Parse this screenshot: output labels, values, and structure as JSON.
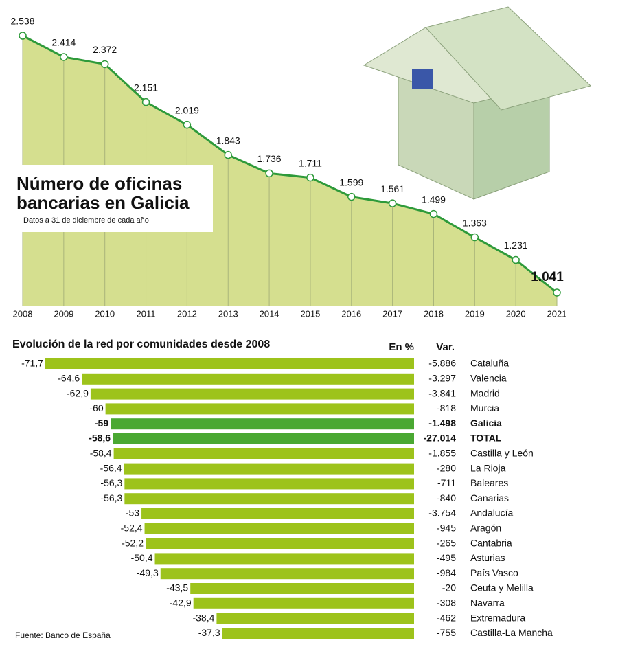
{
  "chart_data": [
    {
      "type": "area",
      "title": [
        "Número de oficinas",
        "bancarias en Galicia"
      ],
      "subtitle": "Datos a 31 de diciembre de cada año",
      "categories": [
        "2008",
        "2009",
        "2010",
        "2011",
        "2012",
        "2013",
        "2014",
        "2015",
        "2016",
        "2017",
        "2018",
        "2019",
        "2020",
        "2021"
      ],
      "values": [
        2538,
        2414,
        2372,
        2151,
        2019,
        1843,
        1736,
        1711,
        1599,
        1561,
        1499,
        1363,
        1231,
        1041
      ],
      "value_labels": [
        "2.538",
        "2.414",
        "2.372",
        "2.151",
        "2.019",
        "1.843",
        "1.736",
        "1.711",
        "1.599",
        "1.561",
        "1.499",
        "1.363",
        "1.231",
        "1.041"
      ],
      "color": "#2e9a3a",
      "fill": "#d5df8f"
    },
    {
      "type": "hbar",
      "title": "Evolución de la red por comunidades desde 2008",
      "categories": [
        "Cataluña",
        "Valencia",
        "Madrid",
        "Murcia",
        "Galicia",
        "TOTAL",
        "Castilla y León",
        "La Rioja",
        "Baleares",
        "Canarias",
        "Andalucía",
        "Aragón",
        "Cantabria",
        "Asturias",
        "País Vasco",
        "Ceuta y Melilla",
        "Navarra",
        "Extremadura",
        "Castilla-La Mancha"
      ],
      "series": [
        {
          "name": "En %",
          "values": [
            -71.7,
            -64.6,
            -62.9,
            -60,
            -59,
            -58.6,
            -58.4,
            -56.4,
            -56.3,
            -56.3,
            -53,
            -52.4,
            -52.2,
            -50.4,
            -49.3,
            -43.5,
            -42.9,
            -38.4,
            -37.3
          ],
          "value_labels": [
            "-71,7",
            "-64,6",
            "-62,9",
            "-60",
            "-59",
            "-58,6",
            "-58,4",
            "-56,4",
            "-56,3",
            "-56,3",
            "-53",
            "-52,4",
            "-52,2",
            "-50,4",
            "-49,3",
            "-43,5",
            "-42,9",
            "-38,4",
            "-37,3"
          ]
        },
        {
          "name": "Var.",
          "values": [
            -5886,
            -3297,
            -3841,
            -818,
            -1498,
            -27014,
            -1855,
            -280,
            -711,
            -840,
            -3754,
            -945,
            -265,
            -495,
            -984,
            -20,
            -308,
            -462,
            -755
          ],
          "value_labels": [
            "-5.886",
            "-3.297",
            "-3.841",
            "-818",
            "-1.498",
            "-27.014",
            "-1.855",
            "-280",
            "-711",
            "-840",
            "-3.754",
            "-945",
            "-265",
            "-495",
            "-984",
            "-20",
            "-308",
            "-462",
            "-755"
          ]
        }
      ],
      "colors": [
        "#9dc31b",
        "#9dc31b",
        "#9dc31b",
        "#9dc31b",
        "#4aa832",
        "#4aa832",
        "#9dc31b",
        "#9dc31b",
        "#9dc31b",
        "#9dc31b",
        "#9dc31b",
        "#9dc31b",
        "#9dc31b",
        "#9dc31b",
        "#9dc31b",
        "#9dc31b",
        "#9dc31b",
        "#9dc31b",
        "#9dc31b"
      ],
      "bold": [
        false,
        false,
        false,
        false,
        true,
        true,
        false,
        false,
        false,
        false,
        false,
        false,
        false,
        false,
        false,
        false,
        false,
        false,
        false
      ]
    }
  ],
  "source": "Fuente: Banco de España"
}
